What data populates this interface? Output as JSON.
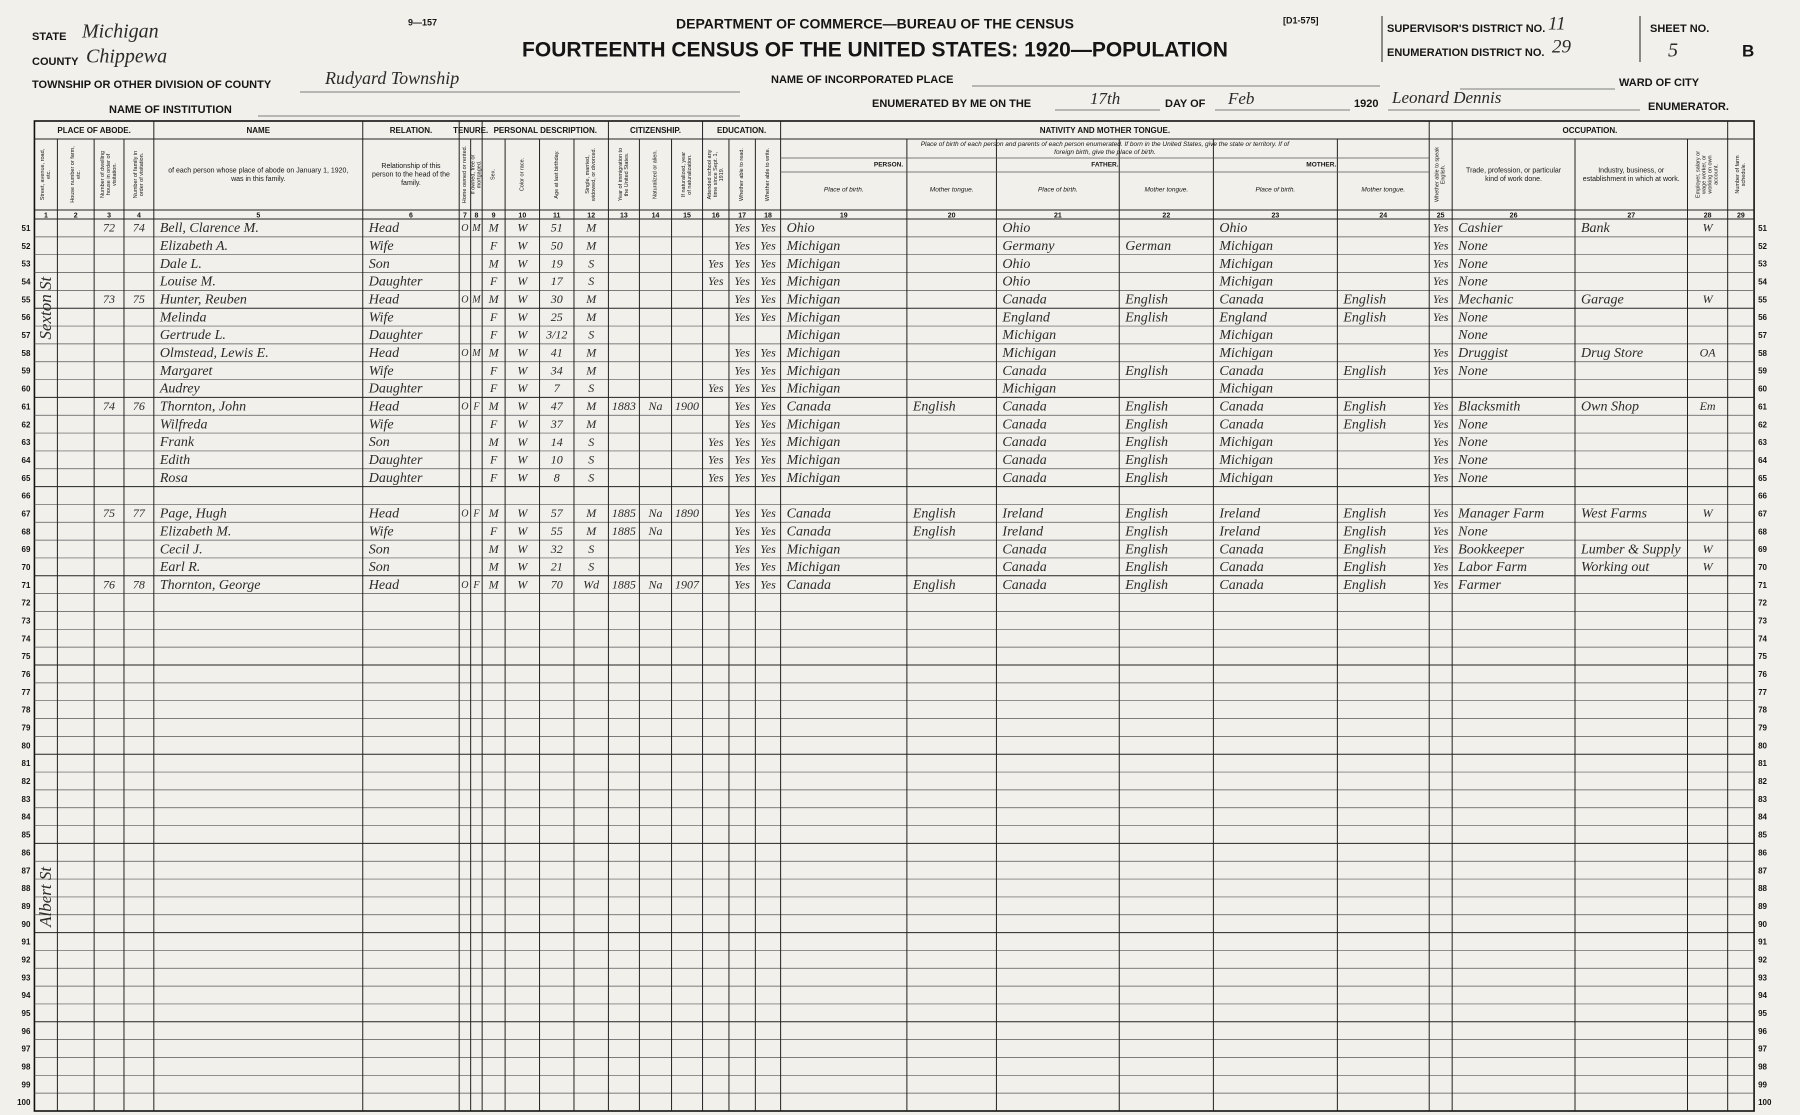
{
  "header": {
    "form_number": "9—157",
    "department": "DEPARTMENT OF COMMERCE—BUREAU OF THE CENSUS",
    "title": "FOURTEENTH CENSUS OF THE UNITED STATES: 1920—POPULATION",
    "code": "[D1-575]",
    "state_label": "STATE",
    "state": "Michigan",
    "county_label": "COUNTY",
    "county": "Chippewa",
    "township_label": "TOWNSHIP OR OTHER DIVISION OF COUNTY",
    "township": "Rudyard Township",
    "institution_label": "NAME OF INSTITUTION",
    "incorporated_label": "NAME OF INCORPORATED PLACE",
    "enumerated_label": "ENUMERATED BY ME ON THE",
    "enumerated_day": "17th",
    "day_of_label": "DAY OF",
    "enumerated_month": "Feb",
    "year": "1920",
    "enumerator_signature": "Leonard Dennis",
    "supervisor_label": "SUPERVISOR'S DISTRICT NO.",
    "supervisor_district": "11",
    "enumeration_label": "ENUMERATION DISTRICT NO.",
    "enumeration_district": "29",
    "sheet_label": "SHEET NO.",
    "sheet_number": "5",
    "sheet_side": "B",
    "ward_label": "WARD OF CITY",
    "enumerator_label": "ENUMERATOR."
  },
  "groups": [
    "PLACE OF ABODE.",
    "NAME",
    "RELATION.",
    "TENURE.",
    "PERSONAL DESCRIPTION.",
    "CITIZENSHIP.",
    "EDUCATION.",
    "NATIVITY AND MOTHER TONGUE.",
    "OCCUPATION."
  ],
  "nativity_note": "Place of birth of each person and parents of each person enumerated. If born in the United States, give the state or territory. If of foreign birth, give the place of birth.",
  "subgroups": [
    "PERSON.",
    "FATHER.",
    "MOTHER."
  ],
  "columns": [
    {
      "number": 1,
      "label": "Street, avenue, road, etc."
    },
    {
      "number": 2,
      "label": "House number or farm, etc."
    },
    {
      "number": 3,
      "label": "Number of dwelling house in order of visitation."
    },
    {
      "number": 4,
      "label": "Number of family in order of visitation."
    },
    {
      "number": 5,
      "label": "of each person whose place of abode on January 1, 1920, was in this family."
    },
    {
      "number": 6,
      "label": "Relationship of this person to the head of the family."
    },
    {
      "number": 7,
      "label": "Home owned or rented."
    },
    {
      "number": 8,
      "label": "If owned, free or mortgaged."
    },
    {
      "number": 9,
      "label": "Sex."
    },
    {
      "number": 10,
      "label": "Color or race."
    },
    {
      "number": 11,
      "label": "Age at last birthday."
    },
    {
      "number": 12,
      "label": "Single, married, widowed, or divorced."
    },
    {
      "number": 13,
      "label": "Year of immigration to the United States."
    },
    {
      "number": 14,
      "label": "Naturalized or alien."
    },
    {
      "number": 15,
      "label": "If naturalized, year of naturalization."
    },
    {
      "number": 16,
      "label": "Attended school any time since Sept. 1, 1919."
    },
    {
      "number": 17,
      "label": "Whether able to read."
    },
    {
      "number": 18,
      "label": "Whether able to write."
    },
    {
      "number": 19,
      "label": "Place of birth."
    },
    {
      "number": 20,
      "label": "Mother tongue."
    },
    {
      "number": 21,
      "label": "Place of birth."
    },
    {
      "number": 22,
      "label": "Mother tongue."
    },
    {
      "number": 23,
      "label": "Place of birth."
    },
    {
      "number": 24,
      "label": "Mother tongue."
    },
    {
      "number": 25,
      "label": "Whether able to speak English."
    },
    {
      "number": 26,
      "label": "Trade, profession, or particular kind of work done."
    },
    {
      "number": 27,
      "label": "Industry, business, or establishment in which at work."
    },
    {
      "number": 28,
      "label": "Employer, salary or wage worker, or working on own account."
    },
    {
      "number": 29,
      "label": "Number of farm schedule."
    }
  ],
  "rows": [
    {
      "line": 51,
      "dwelling": 72,
      "family": 74,
      "name": "Bell, Clarence M.",
      "relation": "Head",
      "home": "O",
      "mortgage": "M",
      "sex": "M",
      "color": "W",
      "age": 51,
      "marital": "M",
      "read": "Yes",
      "write": "Yes",
      "birthplace": "Ohio",
      "father_birthplace": "Ohio",
      "mother_birthplace": "Ohio",
      "english": "Yes",
      "occupation": "Cashier",
      "industry": "Bank",
      "employer": "W"
    },
    {
      "line": 52,
      "name": "Elizabeth A.",
      "relation": "Wife",
      "sex": "F",
      "color": "W",
      "age": 50,
      "marital": "M",
      "read": "Yes",
      "write": "Yes",
      "birthplace": "Michigan",
      "father_birthplace": "Germany",
      "father_tongue": "German",
      "mother_birthplace": "Michigan",
      "english": "Yes",
      "occupation": "None"
    },
    {
      "line": 53,
      "name": "Dale L.",
      "relation": "Son",
      "sex": "M",
      "color": "W",
      "age": 19,
      "marital": "S",
      "school": "Yes",
      "read": "Yes",
      "write": "Yes",
      "birthplace": "Michigan",
      "father_birthplace": "Ohio",
      "mother_birthplace": "Michigan",
      "english": "Yes",
      "occupation": "None"
    },
    {
      "line": 54,
      "name": "Louise M.",
      "relation": "Daughter",
      "sex": "F",
      "color": "W",
      "age": 17,
      "marital": "S",
      "school": "Yes",
      "read": "Yes",
      "write": "Yes",
      "birthplace": "Michigan",
      "father_birthplace": "Ohio",
      "mother_birthplace": "Michigan",
      "english": "Yes",
      "occupation": "None"
    },
    {
      "line": 55,
      "dwelling": 73,
      "family": 75,
      "name": "Hunter, Reuben",
      "relation": "Head",
      "home": "O",
      "mortgage": "M",
      "sex": "M",
      "color": "W",
      "age": 30,
      "marital": "M",
      "read": "Yes",
      "write": "Yes",
      "birthplace": "Michigan",
      "father_birthplace": "Canada",
      "father_tongue": "English",
      "mother_birthplace": "Canada",
      "mother_tongue": "English",
      "english": "Yes",
      "occupation": "Mechanic",
      "industry": "Garage",
      "employer": "W"
    },
    {
      "line": 56,
      "name": "Melinda",
      "relation": "Wife",
      "sex": "F",
      "color": "W",
      "age": 25,
      "marital": "M",
      "read": "Yes",
      "write": "Yes",
      "birthplace": "Michigan",
      "father_birthplace": "England",
      "father_tongue": "English",
      "mother_birthplace": "England",
      "mother_tongue": "English",
      "english": "Yes",
      "occupation": "None"
    },
    {
      "line": 57,
      "name": "Gertrude L.",
      "relation": "Daughter",
      "sex": "F",
      "color": "W",
      "age": "3/12",
      "marital": "S",
      "birthplace": "Michigan",
      "father_birthplace": "Michigan",
      "mother_birthplace": "Michigan",
      "occupation": "None"
    },
    {
      "line": 58,
      "name": "Olmstead, Lewis E.",
      "relation": "Head",
      "home": "O",
      "mortgage": "M",
      "sex": "M",
      "color": "W",
      "age": 41,
      "marital": "M",
      "read": "Yes",
      "write": "Yes",
      "birthplace": "Michigan",
      "father_birthplace": "Michigan",
      "mother_birthplace": "Michigan",
      "english": "Yes",
      "occupation": "Druggist",
      "industry": "Drug Store",
      "employer": "OA"
    },
    {
      "line": 59,
      "name": "Margaret",
      "relation": "Wife",
      "sex": "F",
      "color": "W",
      "age": 34,
      "marital": "M",
      "read": "Yes",
      "write": "Yes",
      "birthplace": "Michigan",
      "father_birthplace": "Canada",
      "father_tongue": "English",
      "mother_birthplace": "Canada",
      "mother_tongue": "English",
      "english": "Yes",
      "occupation": "None"
    },
    {
      "line": 60,
      "name": "Audrey",
      "relation": "Daughter",
      "sex": "F",
      "color": "W",
      "age": 7,
      "marital": "S",
      "school": "Yes",
      "read": "Yes",
      "write": "Yes",
      "birthplace": "Michigan",
      "father_birthplace": "Michigan",
      "mother_birthplace": "Michigan"
    },
    {
      "line": 61,
      "dwelling": 74,
      "family": 76,
      "name": "Thornton, John",
      "relation": "Head",
      "home": "O",
      "mortgage": "F",
      "sex": "M",
      "color": "W",
      "age": 47,
      "marital": "M",
      "immigration": 1883,
      "naturalized": "Na",
      "naturalization_year": 1900,
      "read": "Yes",
      "write": "Yes",
      "birthplace": "Canada",
      "tongue": "English",
      "father_birthplace": "Canada",
      "father_tongue": "English",
      "mother_birthplace": "Canada",
      "mother_tongue": "English",
      "english": "Yes",
      "occupation": "Blacksmith",
      "industry": "Own Shop",
      "employer": "Em"
    },
    {
      "line": 62,
      "name": "Wilfreda",
      "relation": "Wife",
      "sex": "F",
      "color": "W",
      "age": 37,
      "marital": "M",
      "read": "Yes",
      "write": "Yes",
      "birthplace": "Michigan",
      "father_birthplace": "Canada",
      "father_tongue": "English",
      "mother_birthplace": "Canada",
      "mother_tongue": "English",
      "english": "Yes",
      "occupation": "None"
    },
    {
      "line": 63,
      "name": "Frank",
      "relation": "Son",
      "sex": "M",
      "color": "W",
      "age": 14,
      "marital": "S",
      "school": "Yes",
      "read": "Yes",
      "write": "Yes",
      "birthplace": "Michigan",
      "father_birthplace": "Canada",
      "father_tongue": "English",
      "mother_birthplace": "Michigan",
      "english": "Yes",
      "occupation": "None"
    },
    {
      "line": 64,
      "name": "Edith",
      "relation": "Daughter",
      "sex": "F",
      "color": "W",
      "age": 10,
      "marital": "S",
      "school": "Yes",
      "read": "Yes",
      "write": "Yes",
      "birthplace": "Michigan",
      "father_birthplace": "Canada",
      "father_tongue": "English",
      "mother_birthplace": "Michigan",
      "english": "Yes",
      "occupation": "None"
    },
    {
      "line": 65,
      "name": "Rosa",
      "relation": "Daughter",
      "sex": "F",
      "color": "W",
      "age": 8,
      "marital": "S",
      "school": "Yes",
      "read": "Yes",
      "write": "Yes",
      "birthplace": "Michigan",
      "father_birthplace": "Canada",
      "father_tongue": "English",
      "mother_birthplace": "Michigan",
      "english": "Yes",
      "occupation": "None"
    },
    {
      "line": 66
    },
    {
      "line": 67,
      "dwelling": 75,
      "family": 77,
      "name": "Page, Hugh",
      "relation": "Head",
      "home": "O",
      "mortgage": "F",
      "sex": "M",
      "color": "W",
      "age": 57,
      "marital": "M",
      "immigration": 1885,
      "naturalized": "Na",
      "naturalization_year": 1890,
      "read": "Yes",
      "write": "Yes",
      "birthplace": "Canada",
      "tongue": "English",
      "father_birthplace": "Ireland",
      "father_tongue": "English",
      "mother_birthplace": "Ireland",
      "mother_tongue": "English",
      "english": "Yes",
      "occupation": "Manager Farm",
      "industry": "West Farms",
      "employer": "W"
    },
    {
      "line": 68,
      "name": "Elizabeth M.",
      "relation": "Wife",
      "sex": "F",
      "color": "W",
      "age": 55,
      "marital": "M",
      "immigration": 1885,
      "naturalized": "Na",
      "read": "Yes",
      "write": "Yes",
      "birthplace": "Canada",
      "tongue": "English",
      "father_birthplace": "Ireland",
      "father_tongue": "English",
      "mother_birthplace": "Ireland",
      "mother_tongue": "English",
      "english": "Yes",
      "occupation": "None"
    },
    {
      "line": 69,
      "name": "Cecil J.",
      "relation": "Son",
      "sex": "M",
      "color": "W",
      "age": 32,
      "marital": "S",
      "read": "Yes",
      "write": "Yes",
      "birthplace": "Michigan",
      "father_birthplace": "Canada",
      "father_tongue": "English",
      "mother_birthplace": "Canada",
      "mother_tongue": "English",
      "english": "Yes",
      "occupation": "Bookkeeper",
      "industry": "Lumber & Supply",
      "employer": "W"
    },
    {
      "line": 70,
      "name": "Earl R.",
      "relation": "Son",
      "sex": "M",
      "color": "W",
      "age": 21,
      "marital": "S",
      "read": "Yes",
      "write": "Yes",
      "birthplace": "Michigan",
      "father_birthplace": "Canada",
      "father_tongue": "English",
      "mother_birthplace": "Canada",
      "mother_tongue": "English",
      "english": "Yes",
      "occupation": "Labor Farm",
      "industry": "Working out",
      "employer": "W"
    },
    {
      "line": 71,
      "dwelling": 76,
      "family": 78,
      "name": "Thornton, George",
      "relation": "Head",
      "home": "O",
      "mortgage": "F",
      "sex": "M",
      "color": "W",
      "age": 70,
      "marital": "Wd",
      "immigration": 1885,
      "naturalized": "Na",
      "naturalization_year": 1907,
      "read": "Yes",
      "write": "Yes",
      "birthplace": "Canada",
      "tongue": "English",
      "father_birthplace": "Canada",
      "father_tongue": "English",
      "mother_birthplace": "Canada",
      "mother_tongue": "English",
      "english": "Yes",
      "occupation": "Farmer"
    },
    {
      "line": 72
    },
    {
      "line": 73
    },
    {
      "line": 74
    },
    {
      "line": 75
    },
    {
      "line": 76
    },
    {
      "line": 77
    },
    {
      "line": 78
    },
    {
      "line": 79
    },
    {
      "line": 80
    },
    {
      "line": 81
    },
    {
      "line": 82
    },
    {
      "line": 83
    },
    {
      "line": 84
    },
    {
      "line": 85
    },
    {
      "line": 86
    },
    {
      "line": 87
    },
    {
      "line": 88
    },
    {
      "line": 89
    },
    {
      "line": 90
    },
    {
      "line": 91
    },
    {
      "line": 92
    },
    {
      "line": 93
    },
    {
      "line": 94
    },
    {
      "line": 95
    },
    {
      "line": 96
    },
    {
      "line": 97
    },
    {
      "line": 98
    },
    {
      "line": 99
    },
    {
      "line": 100
    }
  ],
  "margin_notes": [
    "Sexton St",
    "Albert St"
  ]
}
